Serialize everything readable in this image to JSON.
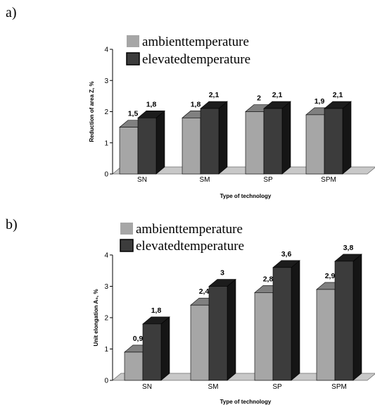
{
  "chart_data": [
    {
      "type": "bar",
      "panel_label": "a)",
      "categories": [
        "SN",
        "SM",
        "SP",
        "SPM"
      ],
      "series": [
        {
          "name": "ambienttemperature",
          "values": [
            1.5,
            1.8,
            2,
            1.9
          ],
          "labels": [
            "1,5",
            "1,8",
            "2",
            "1,9"
          ]
        },
        {
          "name": "elevatedtemperature",
          "values": [
            1.8,
            2.1,
            2.1,
            2.1
          ],
          "labels": [
            "1,8",
            "2,1",
            "2,1",
            "2,1"
          ]
        }
      ],
      "yticks": [
        "0",
        "1",
        "2",
        "3",
        "4"
      ],
      "ylim": [
        0,
        4
      ],
      "xlabel": "Type of technology",
      "ylabel": "Reduction of area Z, %",
      "legend_position": "top-left",
      "grid": false
    },
    {
      "type": "bar",
      "panel_label": "b)",
      "categories": [
        "SN",
        "SM",
        "SP",
        "SPM"
      ],
      "series": [
        {
          "name": "ambienttemperature",
          "values": [
            0.9,
            2.4,
            2.8,
            2.9
          ],
          "labels": [
            "0,9",
            "2,4",
            "2,8",
            "2,9"
          ]
        },
        {
          "name": "elevatedtemperature",
          "values": [
            1.8,
            3,
            3.6,
            3.8
          ],
          "labels": [
            "1,8",
            "3",
            "3,6",
            "3,8"
          ]
        }
      ],
      "yticks": [
        "0",
        "1",
        "2",
        "3",
        "4"
      ],
      "ylim": [
        0,
        4
      ],
      "xlabel": "Type of technology",
      "ylabel": "Unit elongation A₅, %",
      "legend_position": "top-left",
      "grid": false
    }
  ],
  "colors": {
    "ambient_front": "#a6a6a6",
    "ambient_top": "#808080",
    "ambient_side": "#7a7a7a",
    "elevated_front": "#3c3c3c",
    "elevated_top": "#1c1c1c",
    "elevated_side": "#151515",
    "floor": "#c8c8c8"
  }
}
